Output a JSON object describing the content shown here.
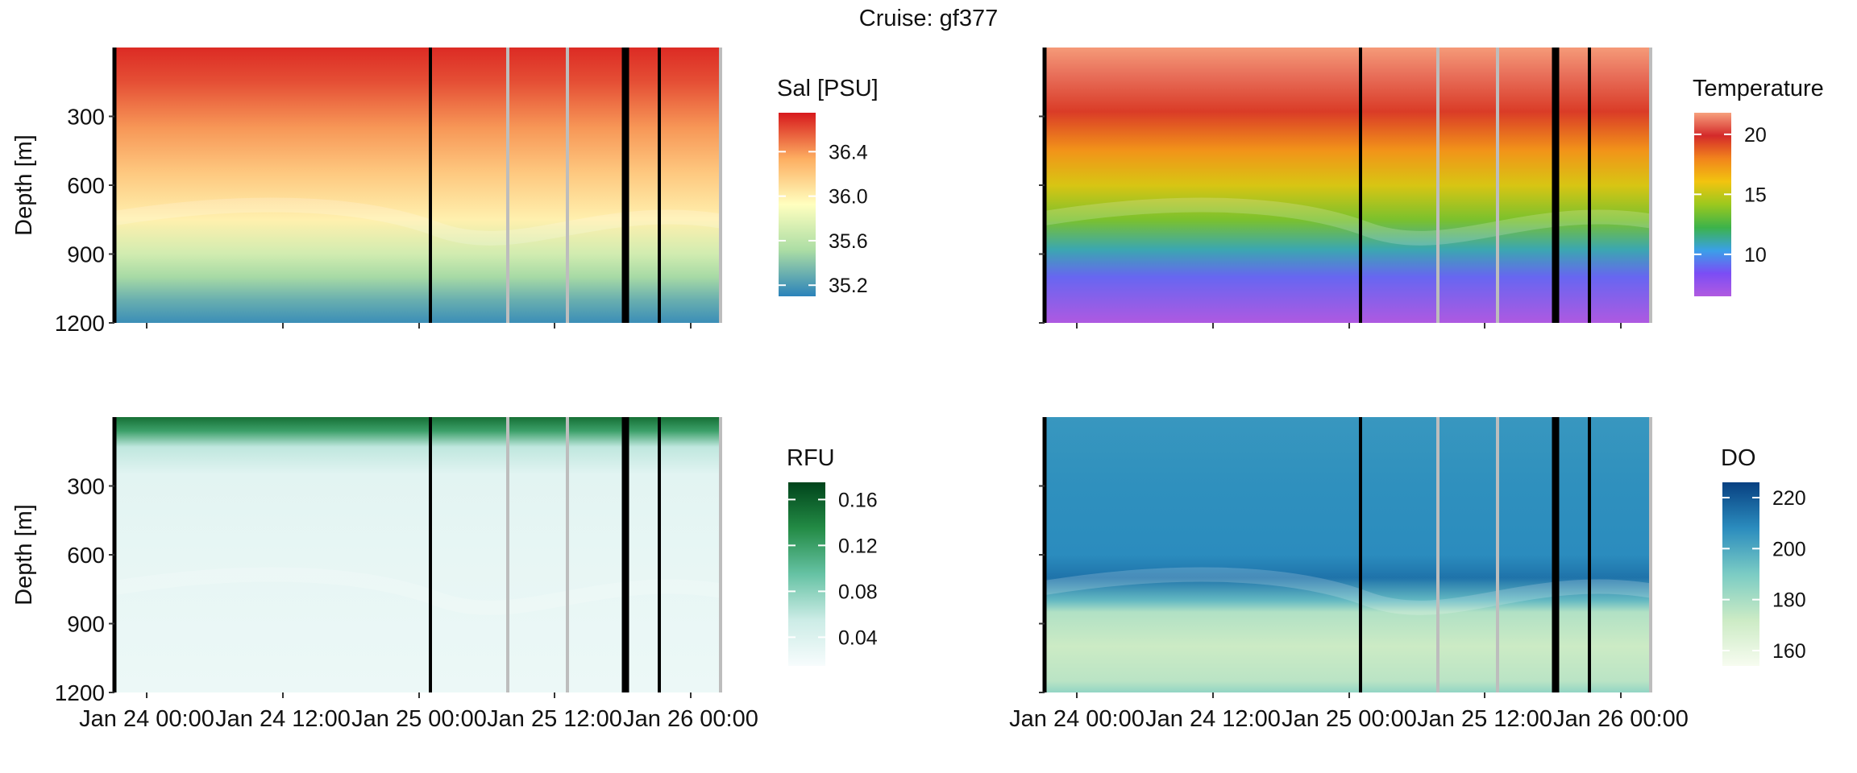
{
  "title": "Cruise: gf377",
  "chart_data": [
    {
      "type": "heatmap",
      "variable": "salinity",
      "xlabel": "",
      "ylabel": "Depth [m]",
      "x_ticks": [
        "Jan 24 00:00",
        "Jan 24 12:00",
        "Jan 25 00:00",
        "Jan 25 12:00",
        "Jan 26 00:00"
      ],
      "y_ticks": [
        "300",
        "600",
        "900",
        "1200"
      ],
      "ylim": [
        0,
        1200
      ],
      "y_reversed": true,
      "legend": {
        "title": "Sal [PSU]",
        "ticks": [
          "36.4",
          "36.0",
          "35.6",
          "35.2"
        ],
        "tick_values": [
          36.4,
          36.0,
          35.6,
          35.2
        ],
        "range": [
          35.1,
          36.75
        ],
        "colors": [
          "#2b83ba",
          "#abdda4",
          "#ffffbf",
          "#fdae61",
          "#d7191c"
        ]
      },
      "profile": [
        {
          "depth": 0,
          "value": 36.7
        },
        {
          "depth": 150,
          "value": 36.6
        },
        {
          "depth": 350,
          "value": 36.4
        },
        {
          "depth": 550,
          "value": 36.2
        },
        {
          "depth": 750,
          "value": 36.0
        },
        {
          "depth": 900,
          "value": 35.7
        },
        {
          "depth": 1000,
          "value": 35.5
        },
        {
          "depth": 1100,
          "value": 35.3
        },
        {
          "depth": 1200,
          "value": 35.15
        }
      ]
    },
    {
      "type": "heatmap",
      "variable": "temperature",
      "xlabel": "",
      "ylabel": "",
      "x_ticks": [
        "Jan 24 00:00",
        "Jan 24 12:00",
        "Jan 25 00:00",
        "Jan 25 12:00",
        "Jan 26 00:00"
      ],
      "ylim": [
        0,
        1200
      ],
      "y_reversed": true,
      "legend": {
        "title": "Temperature",
        "ticks": [
          "20",
          "15",
          "10"
        ],
        "tick_values": [
          20,
          15,
          10
        ],
        "range": [
          6.5,
          21.8
        ],
        "colors": [
          "#b15ae0",
          "#7b4df5",
          "#3aa0e8",
          "#3cb34a",
          "#9bc81e",
          "#f2c40f",
          "#f2841c",
          "#d42a2a",
          "#f7a07c"
        ]
      },
      "profile": [
        {
          "depth": 0,
          "value": 21.7
        },
        {
          "depth": 120,
          "value": 21.0
        },
        {
          "depth": 280,
          "value": 19.5
        },
        {
          "depth": 450,
          "value": 17.5
        },
        {
          "depth": 600,
          "value": 15.5
        },
        {
          "depth": 750,
          "value": 13.5
        },
        {
          "depth": 880,
          "value": 11.0
        },
        {
          "depth": 1000,
          "value": 9.0
        },
        {
          "depth": 1200,
          "value": 6.6
        }
      ]
    },
    {
      "type": "heatmap",
      "variable": "fluorescence",
      "xlabel": "",
      "ylabel": "Depth [m]",
      "x_ticks": [
        "Jan 24 00:00",
        "Jan 24 12:00",
        "Jan 25 00:00",
        "Jan 25 12:00",
        "Jan 26 00:00"
      ],
      "y_ticks": [
        "300",
        "600",
        "900",
        "1200"
      ],
      "ylim": [
        0,
        1200
      ],
      "y_reversed": true,
      "legend": {
        "title": "RFU",
        "ticks": [
          "0.16",
          "0.12",
          "0.08",
          "0.04"
        ],
        "tick_values": [
          0.16,
          0.12,
          0.08,
          0.04
        ],
        "range": [
          0.015,
          0.175
        ],
        "colors": [
          "#f7fcfd",
          "#ccece6",
          "#66c2a4",
          "#238b45",
          "#00441b"
        ]
      },
      "profile": [
        {
          "depth": 0,
          "value": 0.15
        },
        {
          "depth": 60,
          "value": 0.12
        },
        {
          "depth": 130,
          "value": 0.06
        },
        {
          "depth": 250,
          "value": 0.035
        },
        {
          "depth": 600,
          "value": 0.03
        },
        {
          "depth": 1200,
          "value": 0.025
        }
      ]
    },
    {
      "type": "heatmap",
      "variable": "dissolved_oxygen",
      "xlabel": "",
      "ylabel": "",
      "x_ticks": [
        "Jan 24 00:00",
        "Jan 24 12:00",
        "Jan 25 00:00",
        "Jan 25 12:00",
        "Jan 26 00:00"
      ],
      "ylim": [
        0,
        1200
      ],
      "y_reversed": true,
      "legend": {
        "title": "DO",
        "ticks": [
          "220",
          "200",
          "180",
          "160"
        ],
        "tick_values": [
          220,
          200,
          180,
          160
        ],
        "range": [
          154,
          226
        ],
        "colors": [
          "#f7fcf0",
          "#ccebc5",
          "#7bccc4",
          "#2b8cbe",
          "#084081"
        ]
      },
      "profile": [
        {
          "depth": 0,
          "value": 205
        },
        {
          "depth": 300,
          "value": 207
        },
        {
          "depth": 600,
          "value": 208
        },
        {
          "depth": 700,
          "value": 214
        },
        {
          "depth": 800,
          "value": 195
        },
        {
          "depth": 850,
          "value": 178
        },
        {
          "depth": 1000,
          "value": 172
        },
        {
          "depth": 1150,
          "value": 176
        },
        {
          "depth": 1200,
          "value": 185
        }
      ]
    }
  ]
}
